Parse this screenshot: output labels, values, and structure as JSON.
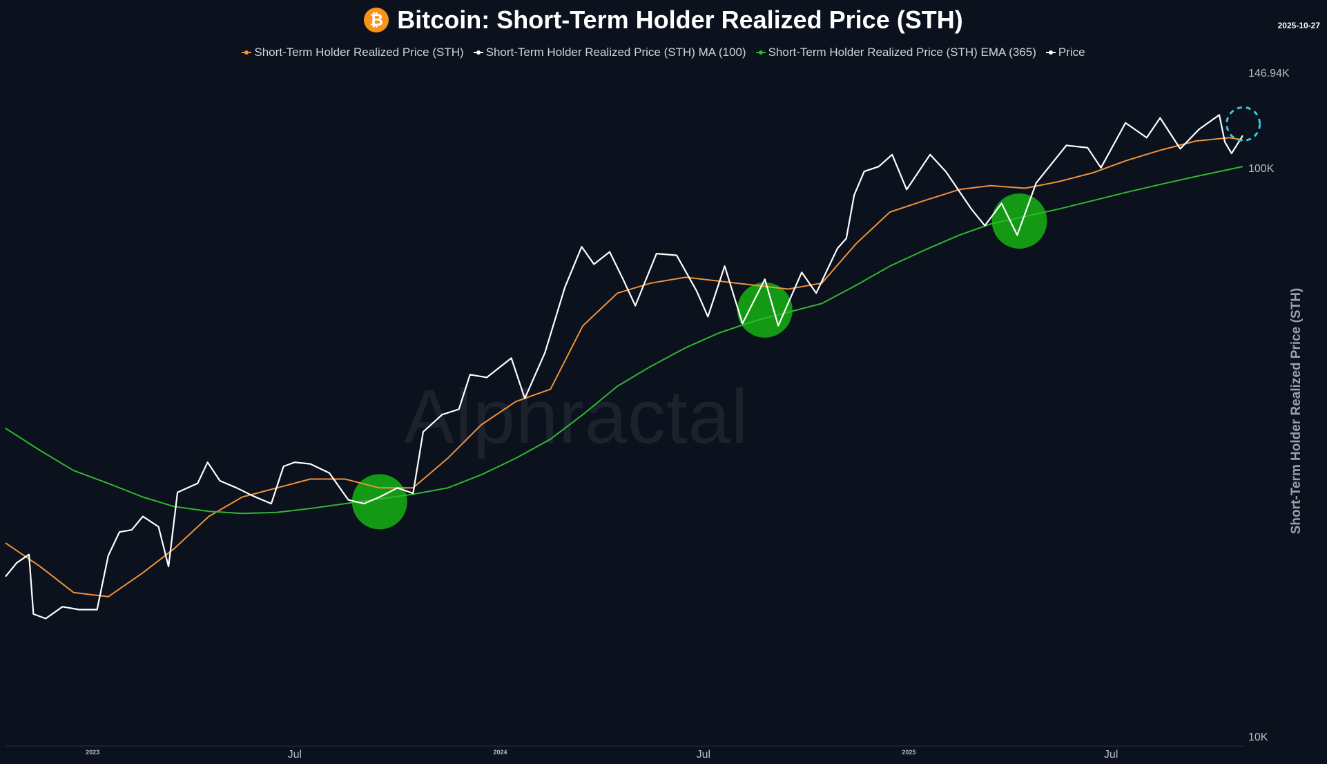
{
  "header": {
    "title": "Bitcoin: Short-Term Holder Realized Price (STH)",
    "date": "2025-10-27",
    "btc_symbol": "₿"
  },
  "watermark": "Alphractal",
  "colors": {
    "background": "#0b111d",
    "sth": "#f0923a",
    "ma100": "#ffffff",
    "ema365": "#2fb82f",
    "price": "#ffffff",
    "highlight": "#14a114",
    "target": "#3cc8dc"
  },
  "chart_data": {
    "type": "line",
    "title": "Bitcoin: Short-Term Holder Realized Price (STH)",
    "ylabel": "Short-Term Holder Realized Price (STH)",
    "y_scale": "log",
    "ylim": [
      10000,
      146940
    ],
    "y_ticks": [
      {
        "value": 146940,
        "label": "146.94K"
      },
      {
        "value": 100000,
        "label": "100K"
      },
      {
        "value": 10000,
        "label": "10K"
      }
    ],
    "x_range": [
      "2022-10-15",
      "2025-10-27"
    ],
    "x_ticks": [
      {
        "date": "2023-01-01",
        "label": "2023",
        "small": true
      },
      {
        "date": "2023-07-01",
        "label": "Jul",
        "small": false
      },
      {
        "date": "2024-01-01",
        "label": "2024",
        "small": true
      },
      {
        "date": "2024-07-01",
        "label": "Jul",
        "small": false
      },
      {
        "date": "2025-01-01",
        "label": "2025",
        "small": true
      },
      {
        "date": "2025-07-01",
        "label": "Jul",
        "small": false
      }
    ],
    "legend_position": "top",
    "series": [
      {
        "name": "Short-Term Holder Realized Price (STH)",
        "color": "#f0923a",
        "points": [
          [
            "2022-10-15",
            22000
          ],
          [
            "2022-11-15",
            20000
          ],
          [
            "2022-12-15",
            18000
          ],
          [
            "2023-01-15",
            17700
          ],
          [
            "2023-02-15",
            19500
          ],
          [
            "2023-03-15",
            21500
          ],
          [
            "2023-04-15",
            24500
          ],
          [
            "2023-05-15",
            26500
          ],
          [
            "2023-06-15",
            27500
          ],
          [
            "2023-07-15",
            28500
          ],
          [
            "2023-08-15",
            28500
          ],
          [
            "2023-09-15",
            27500
          ],
          [
            "2023-10-15",
            27500
          ],
          [
            "2023-11-15",
            31000
          ],
          [
            "2023-12-15",
            35500
          ],
          [
            "2024-01-15",
            39000
          ],
          [
            "2024-02-15",
            41000
          ],
          [
            "2024-03-15",
            53000
          ],
          [
            "2024-04-15",
            60500
          ],
          [
            "2024-05-15",
            63000
          ],
          [
            "2024-06-15",
            64500
          ],
          [
            "2024-07-15",
            63500
          ],
          [
            "2024-08-15",
            62500
          ],
          [
            "2024-09-15",
            61500
          ],
          [
            "2024-10-15",
            63000
          ],
          [
            "2024-11-15",
            74000
          ],
          [
            "2024-12-15",
            84000
          ],
          [
            "2025-01-15",
            88000
          ],
          [
            "2025-02-15",
            92000
          ],
          [
            "2025-03-15",
            93500
          ],
          [
            "2025-04-15",
            92500
          ],
          [
            "2025-05-15",
            95000
          ],
          [
            "2025-06-15",
            98500
          ],
          [
            "2025-07-15",
            103500
          ],
          [
            "2025-08-15",
            108000
          ],
          [
            "2025-09-15",
            112000
          ],
          [
            "2025-10-15",
            113500
          ],
          [
            "2025-10-27",
            112500
          ]
        ]
      },
      {
        "name": "Short-Term Holder Realized Price (STH) MA (100)",
        "color": "#ffffff",
        "points": []
      },
      {
        "name": "Short-Term Holder Realized Price (STH) EMA (365)",
        "color": "#2fb82f",
        "points": [
          [
            "2022-10-15",
            35000
          ],
          [
            "2022-11-15",
            32000
          ],
          [
            "2022-12-15",
            29500
          ],
          [
            "2023-01-15",
            28000
          ],
          [
            "2023-02-15",
            26500
          ],
          [
            "2023-03-15",
            25500
          ],
          [
            "2023-04-15",
            25000
          ],
          [
            "2023-05-15",
            24800
          ],
          [
            "2023-06-15",
            24900
          ],
          [
            "2023-07-15",
            25300
          ],
          [
            "2023-08-15",
            25800
          ],
          [
            "2023-09-15",
            26300
          ],
          [
            "2023-10-15",
            26800
          ],
          [
            "2023-11-15",
            27500
          ],
          [
            "2023-12-15",
            29000
          ],
          [
            "2024-01-15",
            31000
          ],
          [
            "2024-02-15",
            33500
          ],
          [
            "2024-03-15",
            37000
          ],
          [
            "2024-04-15",
            41500
          ],
          [
            "2024-05-15",
            45000
          ],
          [
            "2024-06-15",
            48500
          ],
          [
            "2024-07-15",
            51500
          ],
          [
            "2024-08-15",
            54000
          ],
          [
            "2024-09-15",
            56000
          ],
          [
            "2024-10-15",
            58000
          ],
          [
            "2024-11-15",
            62500
          ],
          [
            "2024-12-15",
            67500
          ],
          [
            "2025-01-15",
            72000
          ],
          [
            "2025-02-15",
            76500
          ],
          [
            "2025-03-15",
            80000
          ],
          [
            "2025-04-15",
            82500
          ],
          [
            "2025-05-15",
            85000
          ],
          [
            "2025-06-15",
            88000
          ],
          [
            "2025-07-15",
            91000
          ],
          [
            "2025-08-15",
            94000
          ],
          [
            "2025-09-15",
            97000
          ],
          [
            "2025-10-27",
            101000
          ]
        ]
      },
      {
        "name": "Price",
        "color": "#ffffff",
        "points": [
          [
            "2022-10-15",
            19200
          ],
          [
            "2022-10-25",
            20300
          ],
          [
            "2022-11-05",
            21000
          ],
          [
            "2022-11-09",
            16500
          ],
          [
            "2022-11-20",
            16200
          ],
          [
            "2022-12-05",
            17000
          ],
          [
            "2022-12-20",
            16800
          ],
          [
            "2023-01-05",
            16800
          ],
          [
            "2023-01-15",
            20900
          ],
          [
            "2023-01-25",
            23000
          ],
          [
            "2023-02-05",
            23200
          ],
          [
            "2023-02-15",
            24500
          ],
          [
            "2023-03-01",
            23500
          ],
          [
            "2023-03-10",
            20000
          ],
          [
            "2023-03-18",
            27000
          ],
          [
            "2023-04-05",
            28000
          ],
          [
            "2023-04-14",
            30500
          ],
          [
            "2023-04-25",
            28300
          ],
          [
            "2023-05-10",
            27500
          ],
          [
            "2023-05-25",
            26600
          ],
          [
            "2023-06-10",
            25800
          ],
          [
            "2023-06-21",
            30000
          ],
          [
            "2023-07-01",
            30500
          ],
          [
            "2023-07-15",
            30300
          ],
          [
            "2023-08-01",
            29200
          ],
          [
            "2023-08-18",
            26200
          ],
          [
            "2023-09-01",
            25800
          ],
          [
            "2023-09-15",
            26500
          ],
          [
            "2023-10-01",
            27500
          ],
          [
            "2023-10-15",
            26900
          ],
          [
            "2023-10-24",
            34500
          ],
          [
            "2023-11-10",
            37000
          ],
          [
            "2023-11-25",
            37800
          ],
          [
            "2023-12-05",
            43500
          ],
          [
            "2023-12-20",
            43000
          ],
          [
            "2024-01-11",
            46500
          ],
          [
            "2024-01-23",
            39500
          ],
          [
            "2024-02-10",
            47500
          ],
          [
            "2024-02-28",
            62000
          ],
          [
            "2024-03-14",
            73000
          ],
          [
            "2024-03-25",
            68000
          ],
          [
            "2024-04-08",
            71500
          ],
          [
            "2024-04-20",
            64000
          ],
          [
            "2024-05-01",
            57500
          ],
          [
            "2024-05-20",
            71000
          ],
          [
            "2024-06-07",
            70500
          ],
          [
            "2024-06-25",
            61000
          ],
          [
            "2024-07-05",
            55000
          ],
          [
            "2024-07-20",
            67500
          ],
          [
            "2024-08-05",
            53500
          ],
          [
            "2024-08-25",
            64000
          ],
          [
            "2024-09-06",
            53000
          ],
          [
            "2024-09-27",
            65800
          ],
          [
            "2024-10-10",
            60500
          ],
          [
            "2024-10-29",
            72500
          ],
          [
            "2024-11-06",
            75500
          ],
          [
            "2024-11-13",
            90000
          ],
          [
            "2024-11-22",
            99000
          ],
          [
            "2024-12-05",
            101000
          ],
          [
            "2024-12-17",
            106000
          ],
          [
            "2024-12-30",
            92000
          ],
          [
            "2025-01-20",
            106000
          ],
          [
            "2025-02-03",
            99000
          ],
          [
            "2025-02-26",
            85000
          ],
          [
            "2025-03-10",
            79500
          ],
          [
            "2025-03-25",
            87000
          ],
          [
            "2025-04-08",
            76500
          ],
          [
            "2025-04-25",
            94500
          ],
          [
            "2025-05-22",
            110000
          ],
          [
            "2025-06-10",
            109000
          ],
          [
            "2025-06-22",
            100500
          ],
          [
            "2025-07-14",
            120500
          ],
          [
            "2025-08-02",
            113500
          ],
          [
            "2025-08-14",
            123000
          ],
          [
            "2025-09-01",
            108500
          ],
          [
            "2025-09-18",
            117500
          ],
          [
            "2025-10-06",
            124500
          ],
          [
            "2025-10-11",
            111500
          ],
          [
            "2025-10-17",
            106500
          ],
          [
            "2025-10-27",
            114500
          ]
        ]
      }
    ],
    "highlights": [
      {
        "date": "2023-09-15",
        "value": 26000,
        "label": ""
      },
      {
        "date": "2024-08-25",
        "value": 56500,
        "label": ""
      },
      {
        "date": "2025-04-10",
        "value": 81000,
        "label": ""
      }
    ],
    "target_marker": {
      "date": "2025-10-20",
      "value": 118000
    }
  }
}
